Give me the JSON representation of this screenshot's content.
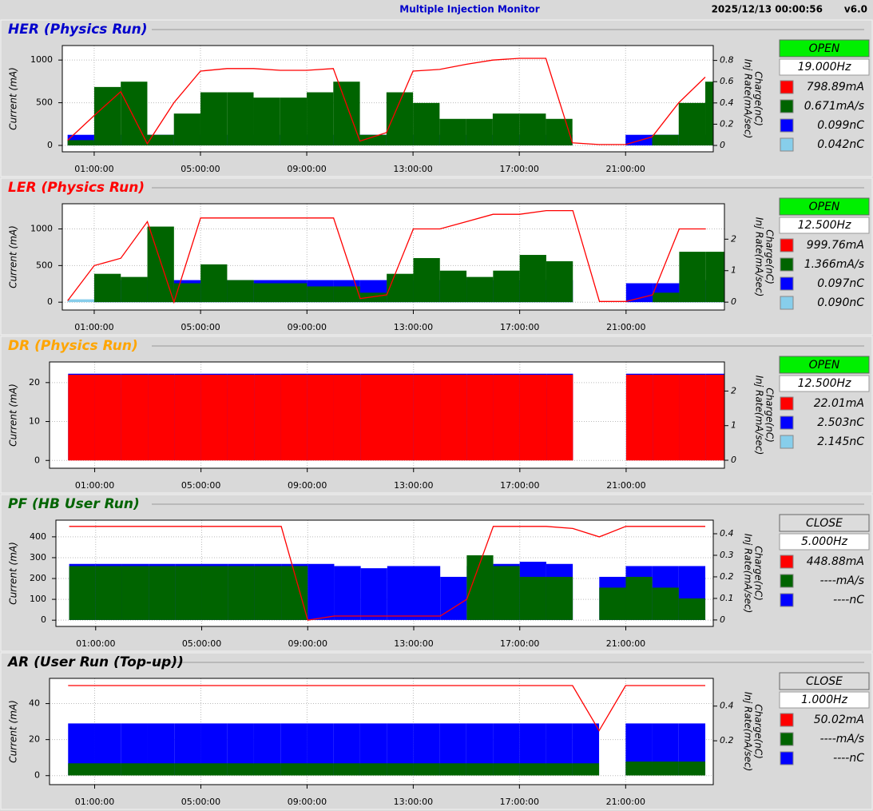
{
  "header": {
    "title": "Multiple Injection Monitor",
    "timestamp": "2025/12/13 00:00:56",
    "version": "v6.0"
  },
  "chart_data": [
    {
      "type": "bar",
      "title": "HER  (Physics Run)",
      "title_color": "#0000cc",
      "status": "OPEN",
      "status_color": "#00f000",
      "rate": "19.000Hz",
      "ylabel": "Current (mA)",
      "y2label": [
        "Charge(nC)",
        "Inj Rate(mA/sec)"
      ],
      "grid": true,
      "xlim": [
        -0.2,
        24.3
      ],
      "xticks": [
        {
          "value": 1,
          "label": "01:00:00"
        },
        {
          "value": 5,
          "label": "05:00:00"
        },
        {
          "value": 9,
          "label": "09:00:00"
        },
        {
          "value": 13,
          "label": "13:00:00"
        },
        {
          "value": 17,
          "label": "17:00:00"
        },
        {
          "value": 21,
          "label": "21:00:00"
        }
      ],
      "ylim": [
        -75,
        1170
      ],
      "yticks": [
        0,
        500,
        1000
      ],
      "y2lim": [
        -0.06,
        0.94
      ],
      "y2ticks": [
        0,
        0.2,
        0.4,
        0.6,
        0.8
      ],
      "x": [
        0,
        1,
        2,
        3,
        4,
        5,
        6,
        7,
        8,
        9,
        10,
        11,
        12,
        13,
        14,
        15,
        16,
        17,
        18,
        19,
        20,
        21,
        22,
        23,
        24
      ],
      "series": [
        {
          "name": "798.89mA",
          "color": "#ff0000",
          "kind": "line",
          "values": [
            60,
            350,
            630,
            20,
            500,
            870,
            900,
            900,
            880,
            880,
            900,
            50,
            150,
            870,
            890,
            950,
            1000,
            1020,
            1020,
            30,
            10,
            10,
            100,
            500,
            800
          ]
        },
        {
          "name": "0.671mA/s",
          "color": "#006400",
          "kind": "bar",
          "axis": "y2",
          "values": [
            0.05,
            0.55,
            0.6,
            0.1,
            0.3,
            0.5,
            0.5,
            0.45,
            0.45,
            0.5,
            0.6,
            0.1,
            0.5,
            0.4,
            0.25,
            0.25,
            0.3,
            0.3,
            0.25,
            0,
            0,
            0,
            0.1,
            0.4,
            0.6
          ]
        },
        {
          "name": "0.099nC",
          "color": "#0000ff",
          "kind": "bar",
          "axis": "y2",
          "values": [
            0.1,
            0.1,
            0.1,
            0.1,
            0.1,
            0.1,
            0.1,
            0.1,
            0.1,
            0.1,
            0.1,
            0.1,
            0.1,
            0.1,
            0.1,
            0.1,
            0.1,
            0.1,
            0.1,
            0,
            0,
            0.1,
            0.1,
            0.1,
            0.1
          ]
        },
        {
          "name": "0.042nC",
          "color": "#87ceeb",
          "kind": "bar",
          "axis": "y2",
          "values": [
            0.04,
            0.04,
            0.04,
            0.04,
            0.04,
            0.04,
            0.04,
            0.04,
            0.04,
            0.04,
            0.04,
            0.04,
            0.04,
            0.04,
            0.04,
            0.04,
            0.04,
            0.04,
            0.04,
            0,
            0,
            0.04,
            0.04,
            0.04,
            0.04
          ]
        }
      ]
    },
    {
      "type": "bar",
      "title": "LER  (Physics Run)",
      "title_color": "#ff0000",
      "status": "OPEN",
      "status_color": "#00f000",
      "rate": "12.500Hz",
      "ylabel": "Current (mA)",
      "y2label": [
        "Charge(nC)",
        "Inj Rate(mA/sec)"
      ],
      "grid": true,
      "xlim": [
        -0.2,
        24.7
      ],
      "xticks": [
        {
          "value": 1,
          "label": "01:00:00"
        },
        {
          "value": 5,
          "label": "05:00:00"
        },
        {
          "value": 9,
          "label": "09:00:00"
        },
        {
          "value": 13,
          "label": "13:00:00"
        },
        {
          "value": 17,
          "label": "17:00:00"
        },
        {
          "value": 21,
          "label": "21:00:00"
        }
      ],
      "ylim": [
        -107,
        1344
      ],
      "yticks": [
        0,
        500,
        1000
      ],
      "y2lim": [
        -0.25,
        3.125
      ],
      "y2ticks": [
        0,
        1,
        2
      ],
      "x": [
        0,
        1,
        2,
        3,
        4,
        5,
        6,
        7,
        8,
        9,
        10,
        11,
        12,
        13,
        14,
        15,
        16,
        17,
        18,
        19,
        20,
        21,
        22,
        23,
        24
      ],
      "series": [
        {
          "name": "999.76mA",
          "color": "#ff0000",
          "kind": "line",
          "values": [
            20,
            500,
            600,
            1100,
            0,
            1150,
            1150,
            1150,
            1150,
            1150,
            1150,
            50,
            100,
            1000,
            1000,
            1100,
            1200,
            1200,
            1250,
            1250,
            10,
            10,
            100,
            1000,
            1000
          ]
        },
        {
          "name": "1.366mA/s",
          "color": "#006400",
          "kind": "bar",
          "axis": "y2",
          "values": [
            0,
            0.9,
            0.8,
            2.4,
            0.6,
            1.2,
            0.7,
            0.6,
            0.6,
            0.5,
            0.5,
            0.3,
            0.9,
            1.4,
            1,
            0.8,
            1,
            1.5,
            1.3,
            0,
            0,
            0,
            0.3,
            1.6,
            1.6
          ]
        },
        {
          "name": "0.097nC",
          "color": "#0000ff",
          "kind": "bar",
          "axis": "y2",
          "values": [
            0,
            0.7,
            0.7,
            0.7,
            0.7,
            0.7,
            0.7,
            0.7,
            0.7,
            0.7,
            0.7,
            0.7,
            0.7,
            0.7,
            0.7,
            0.7,
            0.7,
            0.7,
            0.7,
            0,
            0,
            0.6,
            0.6,
            0.7,
            0.7
          ]
        },
        {
          "name": "0.090nC",
          "color": "#87ceeb",
          "kind": "bar",
          "axis": "y2",
          "values": [
            0.09,
            0.09,
            0.09,
            0.09,
            0.09,
            0.09,
            0.09,
            0.09,
            0.09,
            0.09,
            0.09,
            0.09,
            0.09,
            0.09,
            0.09,
            0.09,
            0.09,
            0.09,
            0.09,
            0,
            0,
            0.09,
            0.09,
            0.09,
            0.09
          ]
        }
      ]
    },
    {
      "type": "bar",
      "title": "DR  (Physics Run)",
      "title_color": "#ffa500",
      "status": "OPEN",
      "status_color": "#00f000",
      "rate": "12.500Hz",
      "ylabel": "Current (mA)",
      "y2label": [
        "Charge(nC)",
        "Inj Rate(mA/sec)"
      ],
      "grid": true,
      "xlim": [
        -0.7,
        24.7
      ],
      "xticks": [
        {
          "value": 1,
          "label": "01:00:00"
        },
        {
          "value": 5,
          "label": "05:00:00"
        },
        {
          "value": 9,
          "label": "09:00:00"
        },
        {
          "value": 13,
          "label": "13:00:00"
        },
        {
          "value": 17,
          "label": "17:00:00"
        },
        {
          "value": 21,
          "label": "21:00:00"
        }
      ],
      "ylim": [
        -2,
        25.3
      ],
      "yticks": [
        0,
        10,
        20
      ],
      "y2lim": [
        -0.23,
        2.84
      ],
      "y2ticks": [
        0,
        1,
        2
      ],
      "x": [
        0,
        1,
        2,
        3,
        4,
        5,
        6,
        7,
        8,
        9,
        10,
        11,
        12,
        13,
        14,
        15,
        16,
        17,
        18,
        19,
        20,
        21,
        22,
        23,
        24
      ],
      "series": [
        {
          "name": "22.01mA",
          "color": "#ff0000",
          "kind": "bar",
          "values": [
            22,
            22,
            22,
            22,
            22,
            22,
            22,
            22,
            22,
            22,
            22,
            22,
            22,
            22,
            22,
            22,
            22,
            22,
            22,
            0,
            0,
            22,
            22,
            22,
            22
          ]
        },
        {
          "name": "2.503nC",
          "color": "#0000ff",
          "kind": "bar",
          "axis": "y2",
          "values": [
            2.5,
            2.5,
            2.5,
            2.5,
            2.5,
            2.5,
            2.5,
            2.5,
            2.5,
            2.5,
            2.5,
            2.5,
            2.5,
            2.5,
            2.5,
            2.5,
            2.5,
            2.5,
            2.5,
            0,
            0,
            2.5,
            2.5,
            2.5,
            2.5
          ]
        },
        {
          "name": "2.145nC",
          "color": "#87ceeb",
          "kind": "bar",
          "axis": "y2",
          "values": [
            2.1,
            2.1,
            2.1,
            2.1,
            2.1,
            2.1,
            2.1,
            2.1,
            2.1,
            2.1,
            2.1,
            2.1,
            2.1,
            2.1,
            2.1,
            2.1,
            2.1,
            2.1,
            2.1,
            0,
            0,
            2.1,
            2.1,
            2.1,
            2.1
          ]
        }
      ]
    },
    {
      "type": "bar",
      "title": "PF  (HB User Run)",
      "title_color": "#006400",
      "status": "CLOSE",
      "status_color": "#dcdcdc",
      "rate": "5.000Hz",
      "ylabel": "Current (mA)",
      "y2label": [
        "Charge(nC)",
        "Inj Rate(mA/sec)"
      ],
      "grid": true,
      "xlim": [
        -0.5,
        24.3
      ],
      "xticks": [
        {
          "value": 1,
          "label": "01:00:00"
        },
        {
          "value": 5,
          "label": "05:00:00"
        },
        {
          "value": 9,
          "label": "09:00:00"
        },
        {
          "value": 13,
          "label": "13:00:00"
        },
        {
          "value": 17,
          "label": "17:00:00"
        },
        {
          "value": 21,
          "label": "21:00:00"
        }
      ],
      "ylim": [
        -30,
        480
      ],
      "yticks": [
        0,
        100,
        200,
        300,
        400
      ],
      "y2lim": [
        -0.03,
        0.463
      ],
      "y2ticks": [
        0,
        0.1,
        0.2,
        0.3,
        0.4
      ],
      "x": [
        0,
        1,
        2,
        3,
        4,
        5,
        6,
        7,
        8,
        9,
        10,
        11,
        12,
        13,
        14,
        15,
        16,
        17,
        18,
        19,
        20,
        21,
        22,
        23,
        24
      ],
      "series": [
        {
          "name": "448.88mA",
          "color": "#ff0000",
          "kind": "line",
          "values": [
            450,
            450,
            450,
            450,
            450,
            450,
            450,
            450,
            450,
            0,
            20,
            20,
            20,
            20,
            20,
            100,
            450,
            450,
            450,
            440,
            400,
            450,
            450,
            450,
            450
          ]
        },
        {
          "name": "----mA/s",
          "color": "#006400",
          "kind": "bar",
          "axis": "y2",
          "values": [
            0.25,
            0.25,
            0.25,
            0.25,
            0.25,
            0.25,
            0.25,
            0.25,
            0.25,
            0,
            0,
            0,
            0,
            0,
            0,
            0.3,
            0.25,
            0.2,
            0.2,
            0,
            0.15,
            0.2,
            0.15,
            0.1,
            0
          ]
        },
        {
          "name": "----nC",
          "color": "#0000ff",
          "kind": "bar",
          "axis": "y2",
          "values": [
            0.26,
            0.26,
            0.26,
            0.26,
            0.26,
            0.26,
            0.26,
            0.26,
            0.26,
            0.26,
            0.25,
            0.24,
            0.25,
            0.25,
            0.2,
            0.25,
            0.26,
            0.27,
            0.26,
            0,
            0.2,
            0.25,
            0.25,
            0.25,
            0
          ]
        }
      ]
    },
    {
      "type": "bar",
      "title": "AR  (User Run (Top-up))",
      "title_color": "#000000",
      "status": "CLOSE",
      "status_color": "#dcdcdc",
      "rate": "1.000Hz",
      "ylabel": "Current (mA)",
      "y2label": [
        "Charge(nC)",
        "Inj Rate(mA/sec)"
      ],
      "grid": true,
      "xlim": [
        -0.7,
        24.3
      ],
      "xticks": [
        {
          "value": 1,
          "label": "01:00:00"
        },
        {
          "value": 5,
          "label": "05:00:00"
        },
        {
          "value": 9,
          "label": "09:00:00"
        },
        {
          "value": 13,
          "label": "13:00:00"
        },
        {
          "value": 17,
          "label": "17:00:00"
        },
        {
          "value": 21,
          "label": "21:00:00"
        }
      ],
      "ylim": [
        -5,
        54
      ],
      "yticks": [
        0,
        20,
        40
      ],
      "y2lim": [
        -0.053,
        0.56
      ],
      "y2ticks": [
        0.2,
        0.4
      ],
      "x": [
        0,
        1,
        2,
        3,
        4,
        5,
        6,
        7,
        8,
        9,
        10,
        11,
        12,
        13,
        14,
        15,
        16,
        17,
        18,
        19,
        20,
        21,
        22,
        23,
        24
      ],
      "series": [
        {
          "name": "50.02mA",
          "color": "#ff0000",
          "kind": "line",
          "values": [
            50,
            50,
            50,
            50,
            50,
            50,
            50,
            50,
            50,
            50,
            50,
            50,
            50,
            50,
            50,
            50,
            50,
            50,
            50,
            50,
            25,
            50,
            50,
            50,
            50
          ]
        },
        {
          "name": "----mA/s",
          "color": "#006400",
          "kind": "bar",
          "axis": "y2",
          "values": [
            0.07,
            0.07,
            0.07,
            0.07,
            0.07,
            0.07,
            0.07,
            0.07,
            0.07,
            0.07,
            0.07,
            0.07,
            0.07,
            0.07,
            0.07,
            0.07,
            0.07,
            0.07,
            0.07,
            0.07,
            0,
            0.08,
            0.08,
            0.08,
            0
          ]
        },
        {
          "name": "----nC",
          "color": "#0000ff",
          "kind": "bar",
          "axis": "y2",
          "values": [
            0.3,
            0.3,
            0.3,
            0.3,
            0.3,
            0.3,
            0.3,
            0.3,
            0.3,
            0.3,
            0.3,
            0.3,
            0.3,
            0.3,
            0.3,
            0.3,
            0.3,
            0.3,
            0.3,
            0.3,
            0,
            0.3,
            0.3,
            0.3,
            0
          ]
        }
      ]
    }
  ]
}
